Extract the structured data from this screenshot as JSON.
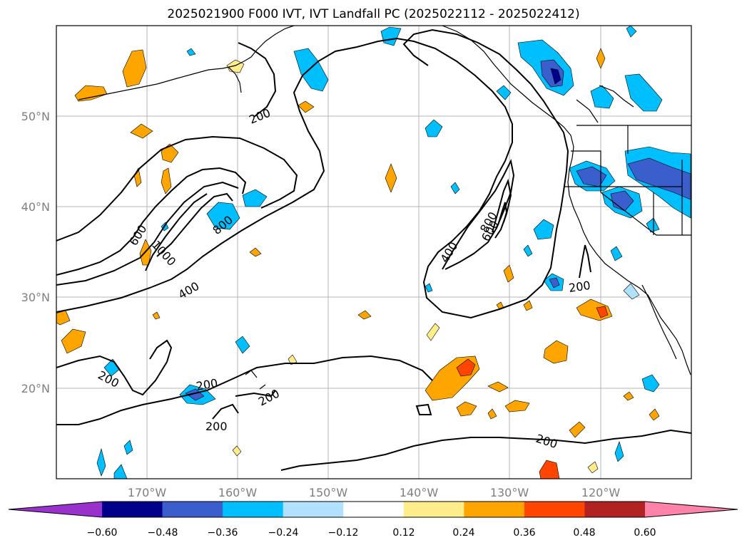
{
  "title": "2025021900 F000 IVT, IVT Landfall PC (2025022112 - 2025022412)",
  "lon_ticks": [
    "170°W",
    "160°W",
    "150°W",
    "140°W",
    "130°W",
    "120°W"
  ],
  "lat_ticks": [
    "50°N",
    "40°N",
    "30°N",
    "20°N"
  ],
  "colorbar": {
    "colors": [
      "#9932cc",
      "#00008b",
      "#3a5fcd",
      "#00bfff",
      "#b0e2ff",
      "#ffffff",
      "#ffec8b",
      "#ffa500",
      "#ff4500",
      "#b22222",
      "#ff82ab"
    ],
    "tick_labels": [
      "−0.60",
      "−0.48",
      "−0.36",
      "−0.24",
      "−0.12",
      "0.12",
      "0.24",
      "0.36",
      "0.48",
      "0.60"
    ]
  },
  "contour_labels": [
    "200",
    "200",
    "200",
    "200",
    "200",
    "200",
    "200",
    "400",
    "400",
    "600",
    "600",
    "800",
    "800",
    "1000"
  ],
  "colors": {
    "positive_weak": "#ffec8b",
    "positive_mid": "#ffa500",
    "positive_strong": "#ff4500",
    "negative_weak": "#b0e2ff",
    "negative_mid": "#00bfff",
    "negative_strong": "#3a5fcd",
    "negative_max": "#00008b"
  }
}
